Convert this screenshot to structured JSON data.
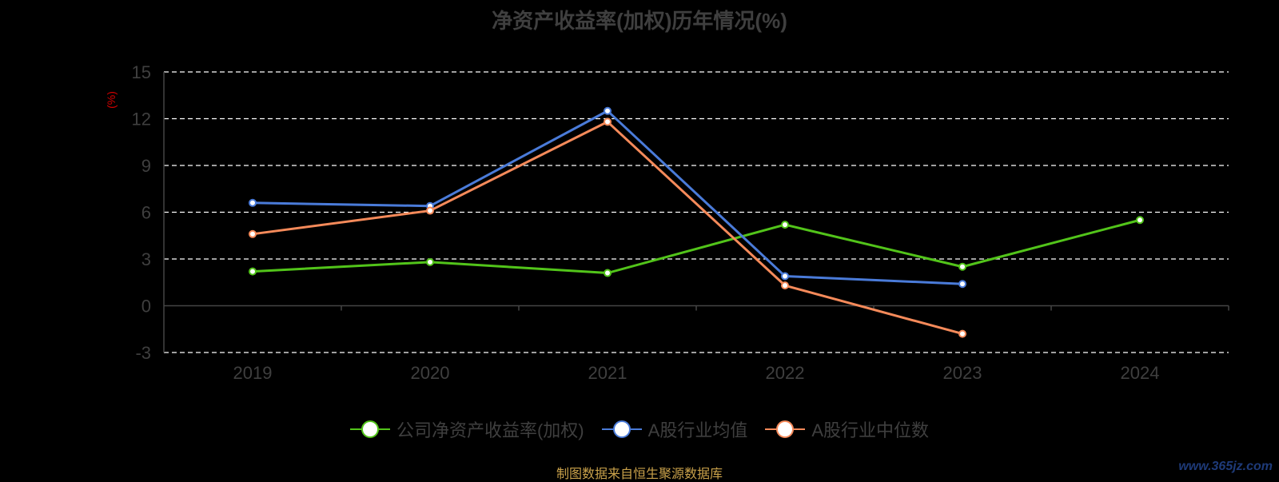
{
  "chart_data": {
    "type": "line",
    "title": "净资产收益率(加权)历年情况(%)",
    "ylabel": "(%)",
    "ylim": [
      -3,
      15
    ],
    "yticks": [
      -3,
      0,
      3,
      6,
      9,
      12,
      15
    ],
    "categories": [
      "2019",
      "2020",
      "2021",
      "2022",
      "2023",
      "2024"
    ],
    "grid": true,
    "legend_position": "bottom",
    "series": [
      {
        "name": "公司净资产收益率(加权)",
        "color": "#52c41a",
        "values": [
          2.2,
          2.8,
          2.1,
          5.2,
          2.5,
          5.5
        ]
      },
      {
        "name": "A股行业均值",
        "color": "#4a7bd9",
        "values": [
          6.6,
          6.4,
          12.5,
          1.9,
          1.4,
          null
        ]
      },
      {
        "name": "A股行业中位数",
        "color": "#f58a5a",
        "values": [
          4.6,
          6.1,
          11.8,
          1.3,
          -1.8,
          null
        ]
      }
    ]
  },
  "footer": {
    "source": "制图数据来自恒生聚源数据库",
    "watermark": "www.365jz.com"
  }
}
